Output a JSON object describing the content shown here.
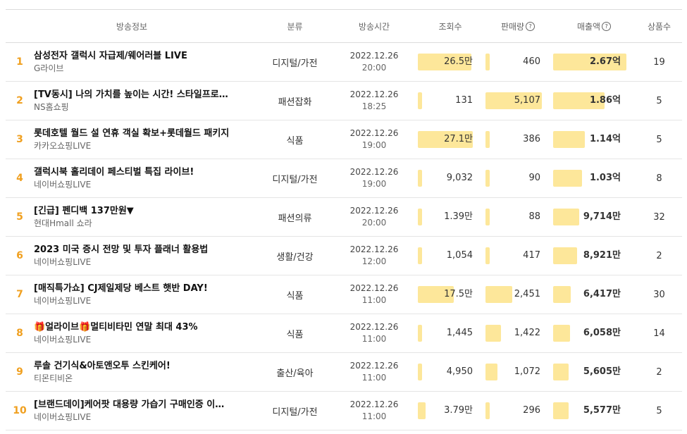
{
  "colors": {
    "accent": "#f0a020",
    "bar": "#fde79a"
  },
  "columns": {
    "info": "방송정보",
    "category": "분류",
    "time": "방송시간",
    "views": "조회수",
    "sales": "판매량",
    "revenue": "매출액",
    "products": "상품수",
    "help_icon": "question-circle-icon"
  },
  "rows": [
    {
      "rank": "1",
      "title": "삼성전자 갤럭시 자급제/웨어러블 LIVE",
      "store": "G라이브",
      "category": "디지털/가전",
      "date": "2022.12.26",
      "time": "20:00",
      "views": "26.5만",
      "views_level": 0.98,
      "sales": "460",
      "sales_level": 0.08,
      "revenue": "2.67억",
      "revenue_level": 1.0,
      "products": "19"
    },
    {
      "rank": "2",
      "title": "[TV동시] 나의 가치를 높이는 시간! 스타일프로그램",
      "store": "NS홈쇼핑",
      "category": "패션잡화",
      "date": "2022.12.26",
      "time": "18:25",
      "views": "131",
      "views_level": 0.0,
      "sales": "5,107",
      "sales_level": 1.0,
      "revenue": "1.86억",
      "revenue_level": 0.7,
      "products": "5"
    },
    {
      "rank": "3",
      "title": "롯데호텔 월드 설 연휴 객실 확보+롯데월드 패키지",
      "store": "카카오쇼핑LIVE",
      "category": "식품",
      "date": "2022.12.26",
      "time": "19:00",
      "views": "27.1만",
      "views_level": 1.0,
      "sales": "386",
      "sales_level": 0.07,
      "revenue": "1.14억",
      "revenue_level": 0.43,
      "products": "5"
    },
    {
      "rank": "4",
      "title": "갤럭시북 홀리데이 페스티벌 특집 라이브!",
      "store": "네이버쇼핑LIVE",
      "category": "디지털/가전",
      "date": "2022.12.26",
      "time": "19:00",
      "views": "9,032",
      "views_level": 0.03,
      "sales": "90",
      "sales_level": 0.02,
      "revenue": "1.03억",
      "revenue_level": 0.39,
      "products": "8"
    },
    {
      "rank": "5",
      "title": "[긴급] 펜디백 137만원▼",
      "store": "현대Hmall 쇼라",
      "category": "패션의류",
      "date": "2022.12.26",
      "time": "20:00",
      "views": "1.39만",
      "views_level": 0.05,
      "sales": "88",
      "sales_level": 0.02,
      "revenue": "9,714만",
      "revenue_level": 0.36,
      "products": "32"
    },
    {
      "rank": "6",
      "title": "2023 미국 증시 전망 및 투자 플래너 활용법",
      "store": "네이버쇼핑LIVE",
      "category": "생활/건강",
      "date": "2022.12.26",
      "time": "12:00",
      "views": "1,054",
      "views_level": 0.0,
      "sales": "417",
      "sales_level": 0.08,
      "revenue": "8,921만",
      "revenue_level": 0.33,
      "products": "2"
    },
    {
      "rank": "7",
      "title": "[매직특가쇼] CJ제일제당 베스트 햇반 DAY!",
      "store": "네이버쇼핑LIVE",
      "category": "식품",
      "date": "2022.12.26",
      "time": "11:00",
      "views": "17.5만",
      "views_level": 0.65,
      "sales": "2,451",
      "sales_level": 0.48,
      "revenue": "6,417만",
      "revenue_level": 0.24,
      "products": "30"
    },
    {
      "rank": "8",
      "title": "🎁얼라이브🎁멀티비타민 연말 최대 43%",
      "store": "네이버쇼핑LIVE",
      "category": "식품",
      "date": "2022.12.26",
      "time": "11:00",
      "views": "1,445",
      "views_level": 0.0,
      "sales": "1,422",
      "sales_level": 0.28,
      "revenue": "6,058만",
      "revenue_level": 0.23,
      "products": "14"
    },
    {
      "rank": "9",
      "title": "루솔 건기식&아토앤오투 스킨케어!",
      "store": "티몬티비온",
      "category": "출산/육아",
      "date": "2022.12.26",
      "time": "11:00",
      "views": "4,950",
      "views_level": 0.02,
      "sales": "1,072",
      "sales_level": 0.21,
      "revenue": "5,605만",
      "revenue_level": 0.21,
      "products": "2"
    },
    {
      "rank": "10",
      "title": "[브랜드데이]케어팟 대용량 가습기 구매인증 이벤트",
      "store": "네이버쇼핑LIVE",
      "category": "디지털/가전",
      "date": "2022.12.26",
      "time": "11:00",
      "views": "3.79만",
      "views_level": 0.14,
      "sales": "296",
      "sales_level": 0.06,
      "revenue": "5,577만",
      "revenue_level": 0.21,
      "products": "5"
    }
  ]
}
